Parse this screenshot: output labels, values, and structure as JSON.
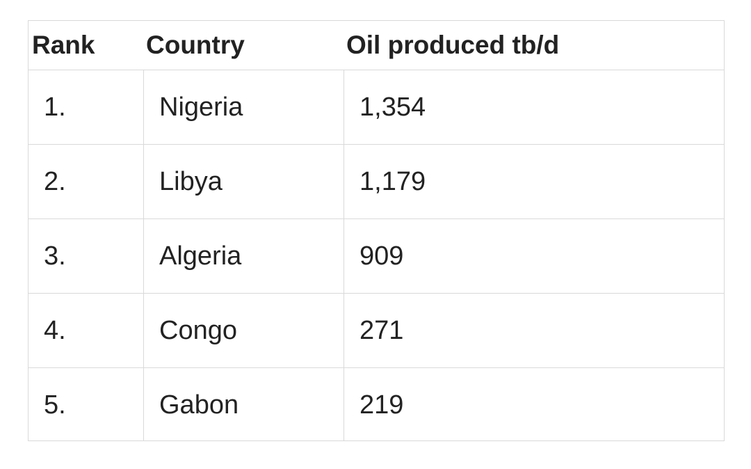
{
  "table": {
    "header": [
      "Rank",
      "Country",
      "Oil produced tb/d"
    ],
    "rows": [
      [
        "1.",
        "Nigeria",
        "1,354"
      ],
      [
        "2.",
        "Libya",
        "1,179"
      ],
      [
        "3.",
        "Algeria",
        "909"
      ],
      [
        "4.",
        "Congo",
        "271"
      ],
      [
        "5.",
        "Gabon",
        "219"
      ]
    ]
  }
}
